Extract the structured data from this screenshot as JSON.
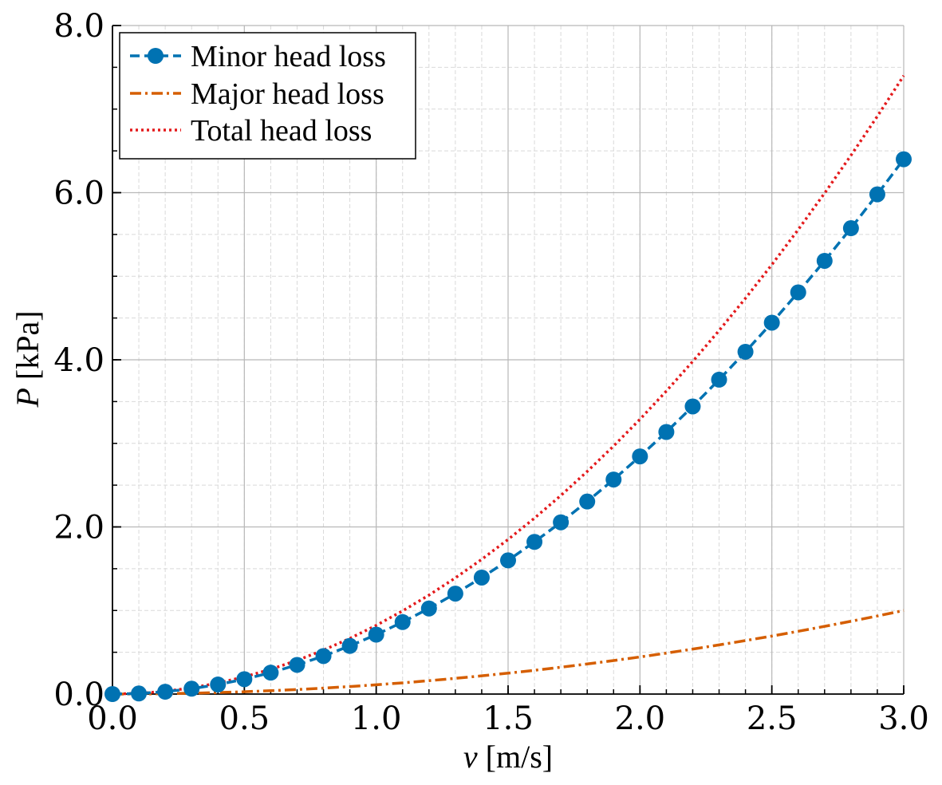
{
  "chart_data": {
    "type": "line",
    "xlabel": {
      "var": "v",
      "unit": " [m/s]"
    },
    "ylabel": {
      "var": "P",
      "unit": " [kPa]"
    },
    "xlim": [
      0,
      3
    ],
    "ylim": [
      0,
      8
    ],
    "x_ticks": [
      0,
      0.5,
      1,
      1.5,
      2,
      2.5,
      3
    ],
    "x_tick_labels": [
      "0.0",
      "0.5",
      "1.0",
      "1.5",
      "2.0",
      "2.5",
      "3.0"
    ],
    "y_ticks": [
      0,
      2,
      4,
      6,
      8
    ],
    "y_tick_labels": [
      "0.0",
      "2.0",
      "4.0",
      "6.0",
      "8.0"
    ],
    "x_minor_step": 0.1,
    "y_minor_step": 0.5,
    "grid": true,
    "legend_position": "top-left",
    "x": [
      0.0,
      0.1,
      0.2,
      0.3,
      0.4,
      0.5,
      0.6,
      0.7,
      0.8,
      0.9,
      1.0,
      1.1,
      1.2,
      1.3,
      1.4,
      1.5,
      1.6,
      1.7,
      1.8,
      1.9,
      2.0,
      2.1,
      2.2,
      2.3,
      2.4,
      2.5,
      2.6,
      2.7,
      2.8,
      2.9,
      3.0
    ],
    "series": [
      {
        "name": "Minor head loss",
        "color": "#0072b2",
        "line_style": "dashed",
        "marker": "circle",
        "values": [
          0.0,
          0.007,
          0.028,
          0.064,
          0.114,
          0.178,
          0.256,
          0.349,
          0.455,
          0.576,
          0.711,
          0.861,
          1.024,
          1.202,
          1.394,
          1.6,
          1.821,
          2.055,
          2.304,
          2.567,
          2.844,
          3.136,
          3.442,
          3.762,
          4.096,
          4.444,
          4.807,
          5.184,
          5.575,
          5.98,
          6.4
        ]
      },
      {
        "name": "Major head loss",
        "color": "#d55e00",
        "line_style": "dashdot",
        "marker": "none",
        "values": [
          0.0,
          0.0011,
          0.0044,
          0.01,
          0.0178,
          0.0278,
          0.04,
          0.0544,
          0.0711,
          0.09,
          0.111,
          0.134,
          0.16,
          0.188,
          0.218,
          0.25,
          0.284,
          0.321,
          0.36,
          0.401,
          0.444,
          0.49,
          0.538,
          0.588,
          0.64,
          0.694,
          0.751,
          0.81,
          0.871,
          0.934,
          1.0
        ]
      },
      {
        "name": "Total head loss",
        "color": "#e41a1c",
        "line_style": "dotted",
        "marker": "none",
        "values": [
          0.0,
          0.0082,
          0.0329,
          0.074,
          0.132,
          0.206,
          0.296,
          0.403,
          0.526,
          0.666,
          0.822,
          0.995,
          1.184,
          1.39,
          1.612,
          1.85,
          2.105,
          2.376,
          2.664,
          2.968,
          3.288,
          3.626,
          3.98,
          4.35,
          4.736,
          5.138,
          5.558,
          5.994,
          6.446,
          6.914,
          7.4
        ]
      }
    ]
  }
}
